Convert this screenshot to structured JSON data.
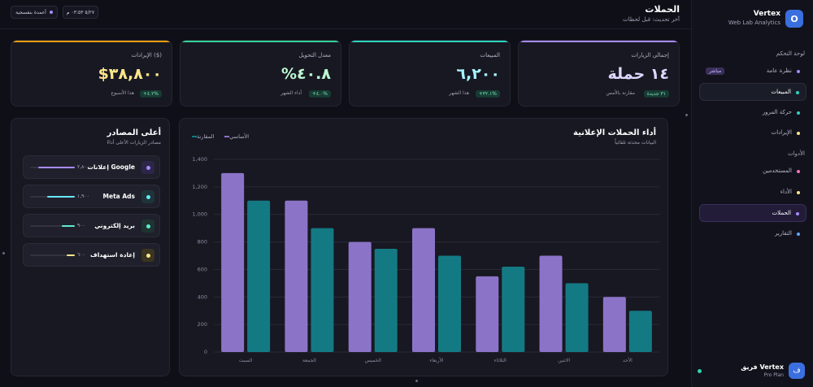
{
  "app": {
    "brand": "Vertex",
    "brand_sub": "Web Lab Analytics",
    "brand_logo": "O"
  },
  "header": {
    "title": "الحملات",
    "subtitle": "آخر تحديث: قبل لحظات",
    "btn_date": "٥/٢٧ ٠٣:٥٣ م",
    "btn_refresh": "أعمدة بنفسجية"
  },
  "sidebar": {
    "section_dashboard": "لوحة التحكم",
    "section_tools": "الأدوات",
    "new_badge": "مباشر",
    "items": [
      {
        "label": "نظرة عامة",
        "color": "#a78bfa"
      },
      {
        "label": "المبيعات",
        "color": "#2dd4bf"
      },
      {
        "label": "حركة المرور",
        "color": "#2dd4bf"
      },
      {
        "label": "الإيرادات",
        "color": "#fde68a"
      },
      {
        "label": "المستخدمين",
        "color": "#f472b6"
      },
      {
        "label": "الأداء",
        "color": "#fde68a"
      },
      {
        "label": "الحملات",
        "color": "#a78bfa"
      },
      {
        "label": "التقارير",
        "color": "#60a5fa"
      }
    ],
    "team_name": "فريق Vertex",
    "team_plan": "Pro Plan",
    "team_avatar": "ف"
  },
  "kpis": [
    {
      "label": "إجمالي الزيارات",
      "value": "١٤ حملة",
      "chip": "٣١ جديدة",
      "note": "مقارنة بالأمس",
      "accent": "#a78bfa",
      "value_color": "#ddd6fe"
    },
    {
      "label": "المبيعات",
      "value": "٦,٢٠٠",
      "chip": "+٣٢.١%",
      "note": "هذا الشهر",
      "accent": "#2dd4bf",
      "value_color": "#a5f3fc"
    },
    {
      "label": "معدل التحويل",
      "value": "%٤٠.٨",
      "chip": "+٤.٠%",
      "note": "أداء الشهر",
      "accent": "#34d399",
      "value_color": "#bbf7d0"
    },
    {
      "label": "الإيرادات ($)",
      "value": "$٣٨,٨٠٠",
      "chip": "+٤.٢%",
      "note": "هذا الأسبوع",
      "accent": "#f59e0b",
      "value_color": "#fde68a"
    }
  ],
  "sources": {
    "title": "أعلى المصادر",
    "subtitle": "مصادر الزيارات الأعلى أداءً",
    "items": [
      {
        "name": "إعلانات Google",
        "value": "٢,٨٠٠",
        "fraction": 0.82,
        "color": "#a78bfa",
        "icon_bg": "#2c2748"
      },
      {
        "name": "Meta Ads",
        "value": "١,٩٠٠",
        "fraction": 0.62,
        "color": "#67e8f9",
        "icon_bg": "#1f3438"
      },
      {
        "name": "بريد إلكتروني",
        "value": "٩٠٠",
        "fraction": 0.3,
        "color": "#5eead4",
        "icon_bg": "#1f3430"
      },
      {
        "name": "إعادة استهداف",
        "value": "٦٠٠",
        "fraction": 0.18,
        "color": "#fde68a",
        "icon_bg": "#3a3420"
      }
    ]
  },
  "chart_panel": {
    "title": "أداء الحملات الإعلانية",
    "subtitle": "البيانات محدثة تلقائياً",
    "legend": [
      "الأساسي",
      "المقارنة"
    ]
  },
  "chart_data": {
    "type": "bar",
    "categories": [
      "الأحد",
      "الاثنين",
      "الثلاثاء",
      "الأربعاء",
      "الخميس",
      "الجمعة",
      "السبت"
    ],
    "series": [
      {
        "name": "الأساسي",
        "values": [
          400,
          700,
          550,
          900,
          800,
          1100,
          1300
        ],
        "color": "#8b74c8"
      },
      {
        "name": "المقارنة",
        "values": [
          300,
          500,
          620,
          700,
          750,
          900,
          1100
        ],
        "color": "#137a84"
      }
    ],
    "yticks": [
      "0",
      "200",
      "400",
      "600",
      "800",
      "1,000",
      "1,200",
      "1,400"
    ],
    "ylim": [
      0,
      1400
    ],
    "grid": true
  }
}
